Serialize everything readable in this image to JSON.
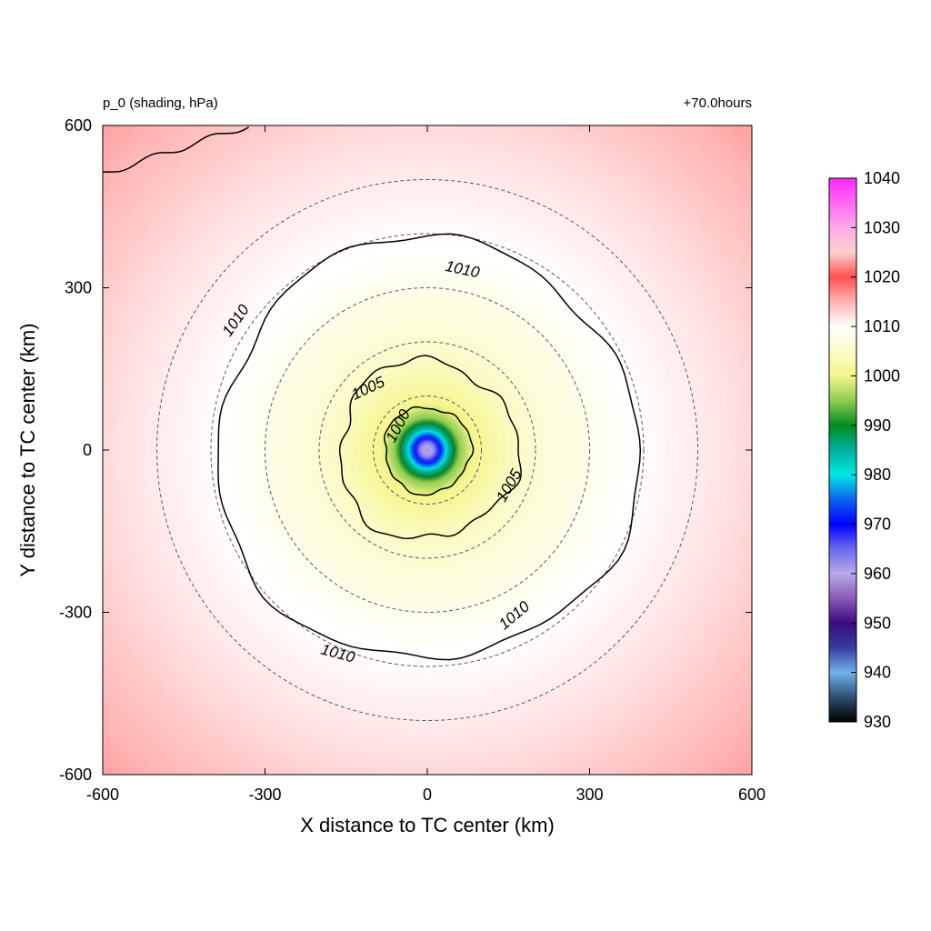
{
  "chart_data": {
    "type": "heatmap",
    "title_left": "p_0 (shading, hPa)",
    "title_right": "+70.0hours",
    "xlabel": "X distance to TC center (km)",
    "ylabel": "Y distance to TC center (km)",
    "xlim": [
      -600,
      600
    ],
    "ylim": [
      -600,
      600
    ],
    "x_ticks": [
      -600,
      -300,
      0,
      300,
      600
    ],
    "y_ticks": [
      600,
      300,
      0,
      -300,
      -600
    ],
    "x_tick_labels": [
      "-600",
      "-300",
      "0",
      "300",
      "600"
    ],
    "y_tick_labels": [
      "600",
      "300",
      "0",
      "-300",
      "-600"
    ],
    "colorbar": {
      "min": 930,
      "max": 1040,
      "tick_values": [
        1040,
        1030,
        1020,
        1010,
        1000,
        990,
        980,
        970,
        960,
        950,
        940,
        930
      ],
      "tick_labels": [
        "1040",
        "1030",
        "1020",
        "1010",
        "1000",
        "990",
        "980",
        "970",
        "960",
        "950",
        "940",
        "930"
      ],
      "colors": [
        {
          "v": 930,
          "c": "#000000"
        },
        {
          "v": 935,
          "c": "#2f4f6f"
        },
        {
          "v": 940,
          "c": "#6fb2ea"
        },
        {
          "v": 945,
          "c": "#3a3aa0"
        },
        {
          "v": 950,
          "c": "#3a0a80"
        },
        {
          "v": 955,
          "c": "#8a5ab8"
        },
        {
          "v": 960,
          "c": "#b7a9ea"
        },
        {
          "v": 965,
          "c": "#6a6af0"
        },
        {
          "v": 970,
          "c": "#0000ff"
        },
        {
          "v": 975,
          "c": "#0a64f0"
        },
        {
          "v": 980,
          "c": "#00e8e0"
        },
        {
          "v": 985,
          "c": "#00b0a0"
        },
        {
          "v": 990,
          "c": "#008c1e"
        },
        {
          "v": 995,
          "c": "#90cc50"
        },
        {
          "v": 1000,
          "c": "#f5f58c"
        },
        {
          "v": 1005,
          "c": "#fbfbc8"
        },
        {
          "v": 1010,
          "c": "#ffffff"
        },
        {
          "v": 1015,
          "c": "#ffb4b4"
        },
        {
          "v": 1020,
          "c": "#ff5050"
        },
        {
          "v": 1025,
          "c": "#ffd0d0"
        },
        {
          "v": 1030,
          "c": "#ffaae8"
        },
        {
          "v": 1040,
          "c": "#ff28ff"
        }
      ]
    },
    "field": {
      "center_x_km": 0,
      "center_y_km": 0,
      "pressure_profile": [
        {
          "r": 0,
          "p": 958
        },
        {
          "r": 12,
          "p": 962
        },
        {
          "r": 25,
          "p": 972
        },
        {
          "r": 40,
          "p": 985
        },
        {
          "r": 60,
          "p": 995
        },
        {
          "r": 85,
          "p": 1000
        },
        {
          "r": 170,
          "p": 1005
        },
        {
          "r": 380,
          "p": 1010
        },
        {
          "r": 560,
          "p": 1012
        },
        {
          "r": 850,
          "p": 1016
        }
      ]
    },
    "contours": [
      {
        "level": 1000,
        "label": "1000",
        "approx_radius_km": 80
      },
      {
        "level": 1005,
        "label": "1005",
        "approx_radius_km": 165
      },
      {
        "level": 1010,
        "label": "1010",
        "approx_radius_km": 390
      },
      {
        "level": 1010,
        "label": "",
        "note_region": "upper-left corner"
      }
    ],
    "contour_labels": [
      {
        "text": "1000",
        "x": -55,
        "y": 45,
        "angle": -62
      },
      {
        "text": "1005",
        "x": -110,
        "y": 115,
        "angle": -25
      },
      {
        "text": "1005",
        "x": 150,
        "y": -65,
        "angle": -60
      },
      {
        "text": "1010",
        "x": 65,
        "y": 335,
        "angle": 12
      },
      {
        "text": "1010",
        "x": -355,
        "y": 240,
        "angle": -55
      },
      {
        "text": "1010",
        "x": 160,
        "y": -305,
        "angle": -40
      },
      {
        "text": "1010",
        "x": -165,
        "y": -375,
        "angle": 15
      }
    ],
    "range_rings_km": [
      50,
      100,
      200,
      300,
      400,
      500
    ]
  }
}
